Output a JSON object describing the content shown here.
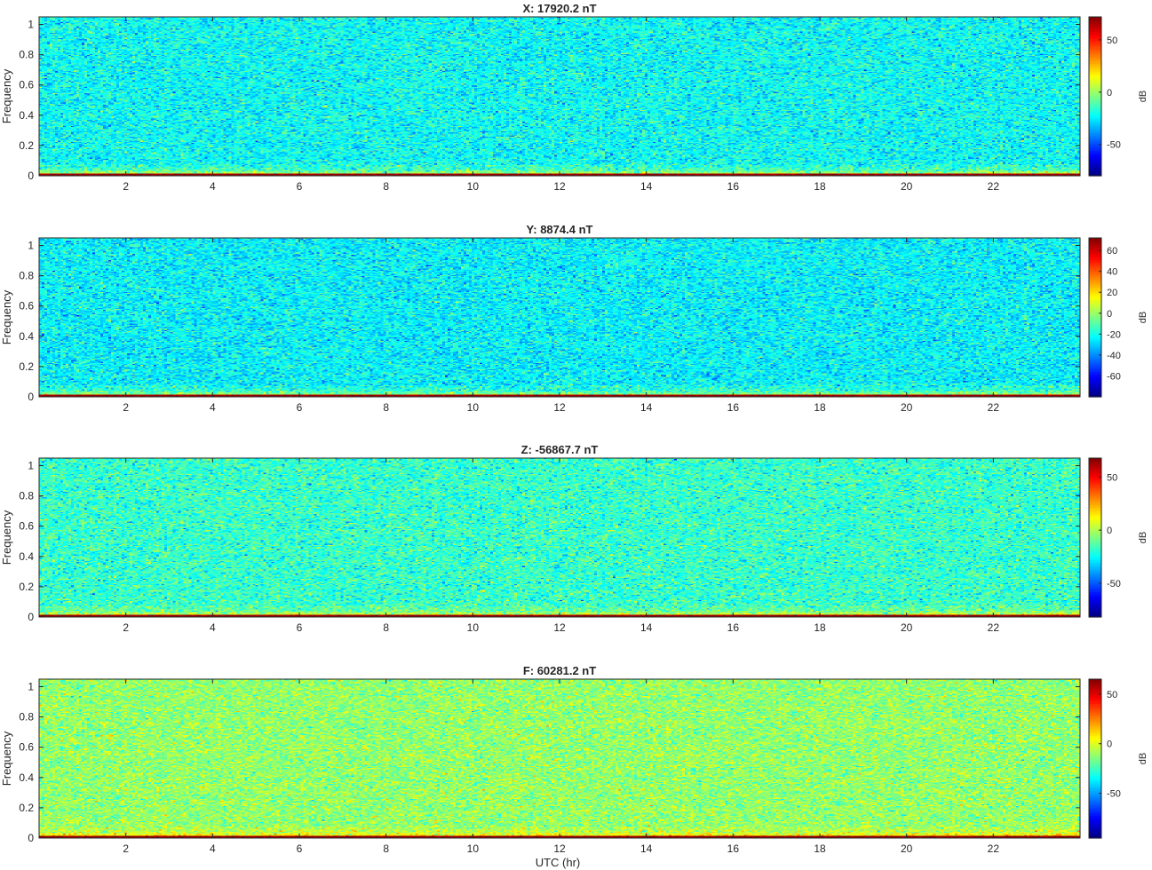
{
  "figure": {
    "xlabel": "UTC (hr)",
    "colormap": "jet",
    "colors": {
      "axis": "#262626",
      "background": "#ffffff"
    }
  },
  "chart_data": [
    {
      "type": "heatmap",
      "title": "X: 17920.2 nT",
      "xlabel": "",
      "ylabel": "Frequency",
      "xlim": [
        0,
        24
      ],
      "ylim": [
        0,
        1.05
      ],
      "xticks": [
        2,
        4,
        6,
        8,
        10,
        12,
        14,
        16,
        18,
        20,
        22
      ],
      "yticks": [
        0,
        0.2,
        0.4,
        0.6,
        0.8,
        1
      ],
      "colorbar": {
        "label": "dB",
        "clim": [
          -80,
          72
        ],
        "ticks": [
          -50,
          0,
          50
        ]
      },
      "background_db": -22,
      "low_band_db": 30,
      "dc_db": 72
    },
    {
      "type": "heatmap",
      "title": "Y: 8874.4 nT",
      "xlabel": "",
      "ylabel": "Frequency",
      "xlim": [
        0,
        24
      ],
      "ylim": [
        0,
        1.05
      ],
      "xticks": [
        2,
        4,
        6,
        8,
        10,
        12,
        14,
        16,
        18,
        20,
        22
      ],
      "yticks": [
        0,
        0.2,
        0.4,
        0.6,
        0.8,
        1
      ],
      "colorbar": {
        "label": "dB",
        "clim": [
          -80,
          72
        ],
        "ticks": [
          -60,
          -40,
          -20,
          0,
          20,
          40,
          60
        ]
      },
      "background_db": -24,
      "low_band_db": 28,
      "dc_db": 72
    },
    {
      "type": "heatmap",
      "title": "Z: -56867.7 nT",
      "xlabel": "",
      "ylabel": "Frequency",
      "xlim": [
        0,
        24
      ],
      "ylim": [
        0,
        1.05
      ],
      "xticks": [
        2,
        4,
        6,
        8,
        10,
        12,
        14,
        16,
        18,
        20,
        22
      ],
      "yticks": [
        0,
        0.2,
        0.4,
        0.6,
        0.8,
        1
      ],
      "colorbar": {
        "label": "dB",
        "clim": [
          -82,
          68
        ],
        "ticks": [
          -50,
          0,
          50
        ]
      },
      "background_db": -18,
      "low_band_db": 32,
      "dc_db": 68
    },
    {
      "type": "heatmap",
      "title": "F: 60281.2 nT",
      "xlabel": "UTC (hr)",
      "ylabel": "Frequency",
      "xlim": [
        0,
        24
      ],
      "ylim": [
        0,
        1.05
      ],
      "xticks": [
        2,
        4,
        6,
        8,
        10,
        12,
        14,
        16,
        18,
        20,
        22
      ],
      "yticks": [
        0,
        0.2,
        0.4,
        0.6,
        0.8,
        1
      ],
      "colorbar": {
        "label": "dB",
        "clim": [
          -95,
          65
        ],
        "ticks": [
          -50,
          0,
          50
        ]
      },
      "background_db": -12,
      "low_band_db": 30,
      "dc_db": 65
    }
  ]
}
